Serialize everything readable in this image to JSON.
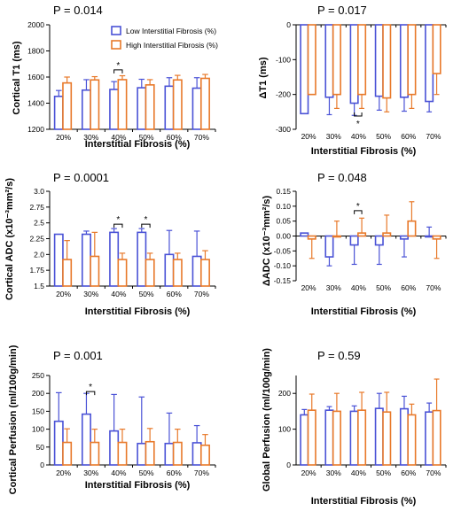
{
  "colors": {
    "low": "#4a52d6",
    "high": "#e8792a",
    "axis": "#000000"
  },
  "legend": {
    "low": "Low Interstitial Fibrosis (%)",
    "high": "High Interstitial Fibrosis (%)"
  },
  "chart_data": [
    {
      "id": "cortical-t1",
      "type": "bar",
      "p_value": "P = 0.014",
      "xlabel": "Interstitial Fibrosis (%)",
      "ylabel": "Cortical T1 (ms)",
      "categories": [
        "20%",
        "30%",
        "40%",
        "50%",
        "60%",
        "70%"
      ],
      "ylim": [
        1200,
        2000
      ],
      "yticks": [
        1200,
        1400,
        1600,
        1800,
        2000
      ],
      "ytick_labels": [
        "1200",
        "1400",
        "1600",
        "1800",
        "2000"
      ],
      "x_axis_at": 1200,
      "series": [
        {
          "name": "Low Interstitial Fibrosis (%)",
          "key": "low",
          "values": [
            1452,
            1500,
            1505,
            1518,
            1530,
            1515
          ],
          "err_up": [
            45,
            80,
            60,
            65,
            65,
            80
          ],
          "err_down": [
            0,
            0,
            0,
            0,
            0,
            0
          ]
        },
        {
          "name": "High Interstitial Fibrosis (%)",
          "key": "high",
          "values": [
            1555,
            1578,
            1580,
            1540,
            1578,
            1590
          ],
          "err_up": [
            45,
            25,
            30,
            40,
            35,
            30
          ],
          "err_down": [
            0,
            0,
            0,
            0,
            0,
            0
          ]
        }
      ],
      "significance": [
        {
          "cat": 2,
          "y": 1655,
          "label": "*",
          "label_pos": "above"
        }
      ],
      "legend_shown": true
    },
    {
      "id": "delta-t1",
      "type": "bar",
      "p_value": "P = 0.017",
      "xlabel": "Interstitial Fibrosis (%)",
      "ylabel": "ΔT1 (ms)",
      "categories": [
        "20%",
        "30%",
        "40%",
        "50%",
        "60%",
        "70%"
      ],
      "ylim": [
        -300,
        0
      ],
      "yticks": [
        -300,
        -200,
        -100,
        0
      ],
      "ytick_labels": [
        "-300",
        "-200",
        "-100",
        "0"
      ],
      "x_axis_at": 0,
      "tick_labels_bottom": true,
      "series": [
        {
          "name": "Low Interstitial Fibrosis (%)",
          "key": "low",
          "values": [
            -255,
            -208,
            -225,
            -205,
            -208,
            -220
          ],
          "err_up": [
            0,
            0,
            0,
            0,
            0,
            0
          ],
          "err_down": [
            0,
            50,
            35,
            40,
            40,
            30
          ]
        },
        {
          "name": "High Interstitial Fibrosis (%)",
          "key": "high",
          "values": [
            -200,
            -200,
            -200,
            -210,
            -200,
            -140
          ],
          "err_up": [
            0,
            0,
            0,
            0,
            0,
            0
          ],
          "err_down": [
            0,
            40,
            40,
            40,
            40,
            60
          ]
        }
      ],
      "significance": [
        {
          "cat": 2,
          "y": -262,
          "label": "*",
          "label_pos": "below"
        }
      ],
      "legend_shown": false
    },
    {
      "id": "cortical-adc",
      "type": "bar",
      "p_value": "P = 0.0001",
      "xlabel": "Interstitial Fibrosis (%)",
      "ylabel": "Cortical ADC (x10⁻³mm²/s)",
      "categories": [
        "20%",
        "30%",
        "40%",
        "50%",
        "60%",
        "70%"
      ],
      "ylim": [
        1.5,
        3.0
      ],
      "yticks": [
        1.5,
        1.75,
        2.0,
        2.25,
        2.5,
        2.75,
        3.0
      ],
      "ytick_labels": [
        "1.5",
        "1.75",
        "2.0",
        "2.25",
        "2.5",
        "2.75",
        "3.0"
      ],
      "x_axis_at": 1.5,
      "series": [
        {
          "name": "Low Interstitial Fibrosis (%)",
          "key": "low",
          "values": [
            2.32,
            2.32,
            2.35,
            2.35,
            2.0,
            1.97
          ],
          "err_up": [
            0.0,
            0.05,
            0.06,
            0.06,
            0.38,
            0.4
          ],
          "err_down": [
            0,
            0,
            0,
            0,
            0,
            0
          ]
        },
        {
          "name": "High Interstitial Fibrosis (%)",
          "key": "high",
          "values": [
            1.92,
            1.97,
            1.92,
            1.92,
            1.92,
            1.92
          ],
          "err_up": [
            0.3,
            0.38,
            0.1,
            0.1,
            0.1,
            0.14
          ],
          "err_down": [
            0,
            0,
            0,
            0,
            0,
            0
          ]
        }
      ],
      "significance": [
        {
          "cat": 2,
          "y": 2.48,
          "label": "*",
          "label_pos": "above"
        },
        {
          "cat": 3,
          "y": 2.48,
          "label": "*",
          "label_pos": "above"
        }
      ],
      "legend_shown": false
    },
    {
      "id": "delta-adc",
      "type": "bar",
      "p_value": "P = 0.048",
      "xlabel": "Interstitial Fibrosis (%)",
      "ylabel": "ΔADC (x10⁻³mm²/s)",
      "categories": [
        "20%",
        "30%",
        "40%",
        "50%",
        "60%",
        "70%"
      ],
      "ylim": [
        -0.15,
        0.15
      ],
      "yticks": [
        -0.15,
        -0.1,
        -0.05,
        0.0,
        0.05,
        0.1,
        0.15
      ],
      "ytick_labels": [
        "-0.15",
        "-0.10",
        "-0.05",
        "0.00",
        "0.05",
        "0.10",
        "0.15"
      ],
      "x_axis_at": 0,
      "tick_labels_bottom": true,
      "series": [
        {
          "name": "Low Interstitial Fibrosis (%)",
          "key": "low",
          "values": [
            0.01,
            -0.07,
            -0.03,
            -0.03,
            -0.01,
            0.0
          ],
          "err_up": [
            0.0,
            0.0,
            0.0,
            0.0,
            0.0,
            0.03
          ],
          "err_down": [
            0,
            0.03,
            0.065,
            0.065,
            0.06,
            0.0
          ]
        },
        {
          "name": "High Interstitial Fibrosis (%)",
          "key": "high",
          "values": [
            -0.01,
            0.0,
            0.01,
            0.01,
            0.05,
            -0.01
          ],
          "err_up": [
            0,
            0.05,
            0.05,
            0.06,
            0.065,
            0.0
          ],
          "err_down": [
            0.065,
            0,
            0,
            0,
            0,
            0.065
          ]
        }
      ],
      "significance": [
        {
          "cat": 2,
          "y": 0.085,
          "label": "*",
          "label_pos": "above"
        }
      ],
      "legend_shown": false
    },
    {
      "id": "cortical-perfusion",
      "type": "bar",
      "p_value": "P = 0.001",
      "xlabel": "Interstitial Fibrosis (%)",
      "ylabel": "Cortical Perfusion (ml/100g/min)",
      "categories": [
        "20%",
        "30%",
        "40%",
        "50%",
        "60%",
        "70%"
      ],
      "ylim": [
        0,
        250
      ],
      "yticks": [
        0,
        50,
        100,
        150,
        200,
        250
      ],
      "ytick_labels": [
        "0",
        "50",
        "100",
        "150",
        "200",
        "250"
      ],
      "x_axis_at": 0,
      "series": [
        {
          "name": "Low Interstitial Fibrosis (%)",
          "key": "low",
          "values": [
            122,
            142,
            95,
            60,
            60,
            62
          ],
          "err_up": [
            80,
            58,
            102,
            130,
            85,
            48
          ],
          "err_down": [
            0,
            0,
            0,
            0,
            0,
            0
          ]
        },
        {
          "name": "High Interstitial Fibrosis (%)",
          "key": "high",
          "values": [
            63,
            63,
            63,
            65,
            63,
            55
          ],
          "err_up": [
            38,
            37,
            37,
            37,
            37,
            30
          ],
          "err_down": [
            0,
            0,
            0,
            0,
            0,
            0
          ]
        }
      ],
      "significance": [
        {
          "cat": 1,
          "y": 205,
          "label": "*",
          "label_pos": "above"
        }
      ],
      "legend_shown": false
    },
    {
      "id": "global-perfusion",
      "type": "bar",
      "p_value": "P = 0.59",
      "xlabel": "Interstitial Fibrosis (%)",
      "ylabel": "Global Perfusion (ml/100g/min)",
      "categories": [
        "20%",
        "30%",
        "40%",
        "50%",
        "60%",
        "70%"
      ],
      "ylim": [
        0,
        250
      ],
      "yticks": [
        0,
        100,
        200
      ],
      "ytick_labels": [
        "0",
        "100",
        "200"
      ],
      "x_axis_at": 0,
      "series": [
        {
          "name": "Low Interstitial Fibrosis (%)",
          "key": "low",
          "values": [
            140,
            153,
            150,
            158,
            157,
            148
          ],
          "err_up": [
            15,
            10,
            15,
            42,
            35,
            25
          ],
          "err_down": [
            0,
            0,
            0,
            0,
            0,
            0
          ]
        },
        {
          "name": "High Interstitial Fibrosis (%)",
          "key": "high",
          "values": [
            153,
            150,
            153,
            148,
            140,
            152
          ],
          "err_up": [
            45,
            50,
            50,
            55,
            30,
            88
          ],
          "err_down": [
            0,
            0,
            0,
            0,
            0,
            0
          ]
        }
      ],
      "significance": [],
      "legend_shown": false
    }
  ]
}
